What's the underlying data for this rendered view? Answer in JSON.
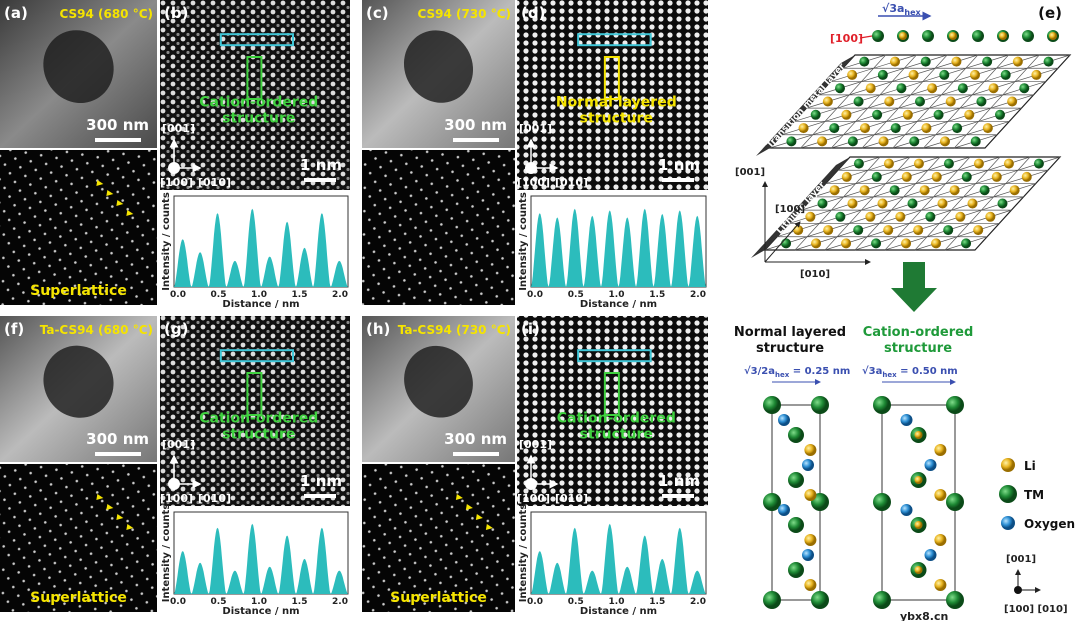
{
  "panels": {
    "a": {
      "label": "(a)",
      "caption": "CS94 (680 °C)",
      "scale": "300 nm",
      "note": "Superlattice"
    },
    "b": {
      "label": "(b)",
      "annotation": [
        "Cation-ordered",
        "structure"
      ],
      "axis": [
        "[001]",
        "[100]",
        "[010]"
      ],
      "scale": "1 nm",
      "ylabel": "Intensity / counts",
      "xlabel": "Distance / nm",
      "ticks": [
        "0.0",
        "0.5",
        "1.0",
        "1.5",
        "2.0"
      ]
    },
    "c": {
      "label": "(c)",
      "caption": "CS94 (730 °C)",
      "scale": "300 nm"
    },
    "d": {
      "label": "(d)",
      "annotation": [
        "Normal layered",
        "structure"
      ],
      "axis": [
        "[001]",
        "[100]",
        "[010]"
      ],
      "scale": "1 nm",
      "ylabel": "Intensity / counts",
      "xlabel": "Distance / nm",
      "ticks": [
        "0.0",
        "0.5",
        "1.0",
        "1.5",
        "2.0"
      ]
    },
    "f": {
      "label": "(f)",
      "caption": "Ta-CS94 (680 °C)",
      "scale": "300 nm",
      "note": "Superlattice"
    },
    "g": {
      "label": "(g)",
      "annotation": [
        "Cation-ordered",
        "structure"
      ],
      "axis": [
        "[001]",
        "[100]",
        "[010]"
      ],
      "scale": "1 nm",
      "ylabel": "Intensity / counts",
      "xlabel": "Distance / nm",
      "ticks": [
        "0.0",
        "0.5",
        "1.0",
        "1.5",
        "2.0"
      ]
    },
    "h": {
      "label": "(h)",
      "caption": "Ta-CS94 (730 °C)",
      "scale": "300 nm",
      "note": "Superlattice"
    },
    "i": {
      "label": "(i)",
      "annotation": [
        "Cation-ordered",
        "structure"
      ],
      "axis": [
        "[001]",
        "[100]",
        "[010]"
      ],
      "scale": "1 nm",
      "ylabel": "Intensity / counts",
      "xlabel": "Distance / nm",
      "ticks": [
        "0.0",
        "0.5",
        "1.0",
        "1.5",
        "2.0"
      ]
    },
    "e": {
      "label": "(e)",
      "period": [
        "√3a",
        "hex"
      ],
      "direction": "[100]",
      "tm_layer": "Transition metal layer",
      "li_layer": "Lithium layer",
      "axes": [
        "[001]",
        "[100]",
        "[010]"
      ],
      "normal_title": [
        "Normal layered",
        "structure"
      ],
      "ordered_title": [
        "Cation-ordered",
        "structure"
      ],
      "normal_dim": [
        "√3/2",
        "a",
        "hex",
        " = 0.25 nm"
      ],
      "ordered_dim": [
        "√3a",
        "hex",
        " = 0.50 nm"
      ],
      "legend": [
        "Li",
        "TM",
        "Oxygen"
      ],
      "mini_axes": [
        "[001]",
        "[100] [010]"
      ]
    }
  },
  "watermark": "ybx8.cn"
}
